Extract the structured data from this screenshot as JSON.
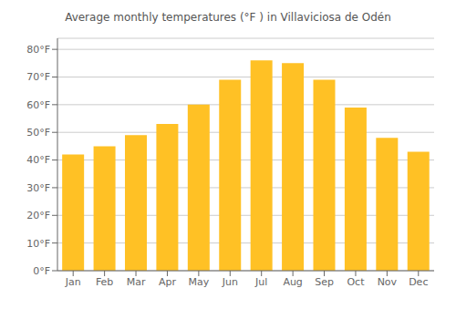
{
  "chart_data": {
    "type": "bar",
    "title": "Average monthly temperatures (°F ) in Villaviciosa de Odén",
    "categories": [
      "Jan",
      "Feb",
      "Mar",
      "Apr",
      "May",
      "Jun",
      "Jul",
      "Aug",
      "Sep",
      "Oct",
      "Nov",
      "Dec"
    ],
    "values": [
      42,
      45,
      49,
      53,
      60,
      69,
      76,
      75,
      69,
      59,
      48,
      43
    ],
    "color": "#FFC125",
    "ylim": [
      0,
      84
    ],
    "yticks": [
      {
        "value": 0,
        "label": "0°F"
      },
      {
        "value": 10,
        "label": "10°F"
      },
      {
        "value": 20,
        "label": "20°F"
      },
      {
        "value": 30,
        "label": "30°F"
      },
      {
        "value": 40,
        "label": "40°F"
      },
      {
        "value": 50,
        "label": "50°F"
      },
      {
        "value": 60,
        "label": "60°F"
      },
      {
        "value": 70,
        "label": "70°F"
      },
      {
        "value": 80,
        "label": "80°F"
      }
    ],
    "grid": true
  }
}
